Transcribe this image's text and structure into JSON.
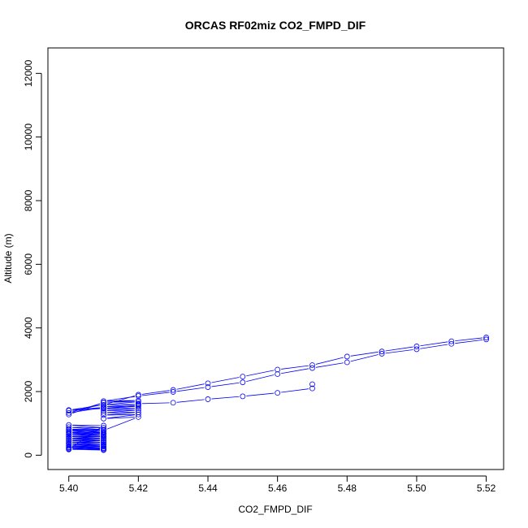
{
  "chart_data": {
    "type": "scatter",
    "title": "ORCAS RF02miz CO2_FMPD_DIF",
    "xlabel": "CO2_FMPD_DIF",
    "ylabel": "Altitude (m)",
    "xlim": [
      5.394,
      5.525
    ],
    "ylim": [
      -450,
      12800
    ],
    "x_ticks": [
      5.4,
      5.42,
      5.44,
      5.46,
      5.48,
      5.5,
      5.52
    ],
    "x_tick_labels": [
      "5.40",
      "5.42",
      "5.44",
      "5.46",
      "5.48",
      "5.50",
      "5.52"
    ],
    "y_ticks": [
      0,
      2000,
      4000,
      6000,
      8000,
      10000,
      12000
    ],
    "y_tick_labels": [
      "0",
      "2000",
      "4000",
      "6000",
      "8000",
      "10000",
      "12000"
    ],
    "grid": false,
    "colors": {
      "series": "#0000ff",
      "axes": "#000000"
    },
    "series": [
      {
        "x": [
          5.4,
          5.41,
          5.4,
          5.41,
          5.4,
          5.41,
          5.4,
          5.41,
          5.4,
          5.41,
          5.4,
          5.41,
          5.4,
          5.41,
          5.4,
          5.41,
          5.4,
          5.41,
          5.4,
          5.41,
          5.4,
          5.41,
          5.4,
          5.41,
          5.4,
          5.41,
          5.4,
          5.41,
          5.4,
          5.41,
          5.4,
          5.41,
          5.4,
          5.41,
          5.4,
          5.41,
          5.4,
          5.41,
          5.4,
          5.41,
          5.4,
          5.41,
          5.4,
          5.41,
          5.4,
          5.41,
          5.4,
          5.41,
          5.4,
          5.41,
          5.42,
          5.41,
          5.42,
          5.41,
          5.42,
          5.41,
          5.42,
          5.41,
          5.42,
          5.41,
          5.42,
          5.41,
          5.42,
          5.41,
          5.42,
          5.41,
          5.42,
          5.41,
          5.42,
          5.43,
          5.44,
          5.45,
          5.46,
          5.47,
          5.48,
          5.49,
          5.5,
          5.51,
          5.52,
          5.52,
          5.51,
          5.5,
          5.49,
          5.48,
          5.47,
          5.46,
          5.45,
          5.44,
          5.43,
          5.42,
          5.41,
          5.4,
          5.41,
          5.4,
          5.41,
          5.4,
          5.4,
          5.41,
          5.42,
          5.42,
          5.43,
          5.44,
          5.45,
          5.46,
          5.47,
          5.47
        ],
        "y": [
          200,
          180,
          250,
          230,
          300,
          290,
          360,
          340,
          420,
          400,
          480,
          460,
          540,
          520,
          600,
          580,
          650,
          620,
          700,
          680,
          760,
          740,
          820,
          800,
          880,
          860,
          950,
          930,
          180,
          160,
          230,
          210,
          290,
          270,
          350,
          330,
          410,
          390,
          470,
          450,
          530,
          510,
          590,
          570,
          660,
          640,
          720,
          700,
          800,
          780,
          1200,
          1150,
          1280,
          1260,
          1350,
          1330,
          1420,
          1400,
          1480,
          1460,
          1540,
          1520,
          1600,
          1580,
          1680,
          1660,
          1720,
          1700,
          1860,
          1990,
          2140,
          2290,
          2550,
          2740,
          2920,
          3190,
          3330,
          3500,
          3640,
          3700,
          3580,
          3420,
          3260,
          3100,
          2830,
          2690,
          2470,
          2260,
          2050,
          1900,
          1580,
          1420,
          1500,
          1330,
          1650,
          1280,
          1400,
          1470,
          1570,
          1620,
          1650,
          1760,
          1850,
          1960,
          2100,
          2230
        ]
      }
    ]
  }
}
